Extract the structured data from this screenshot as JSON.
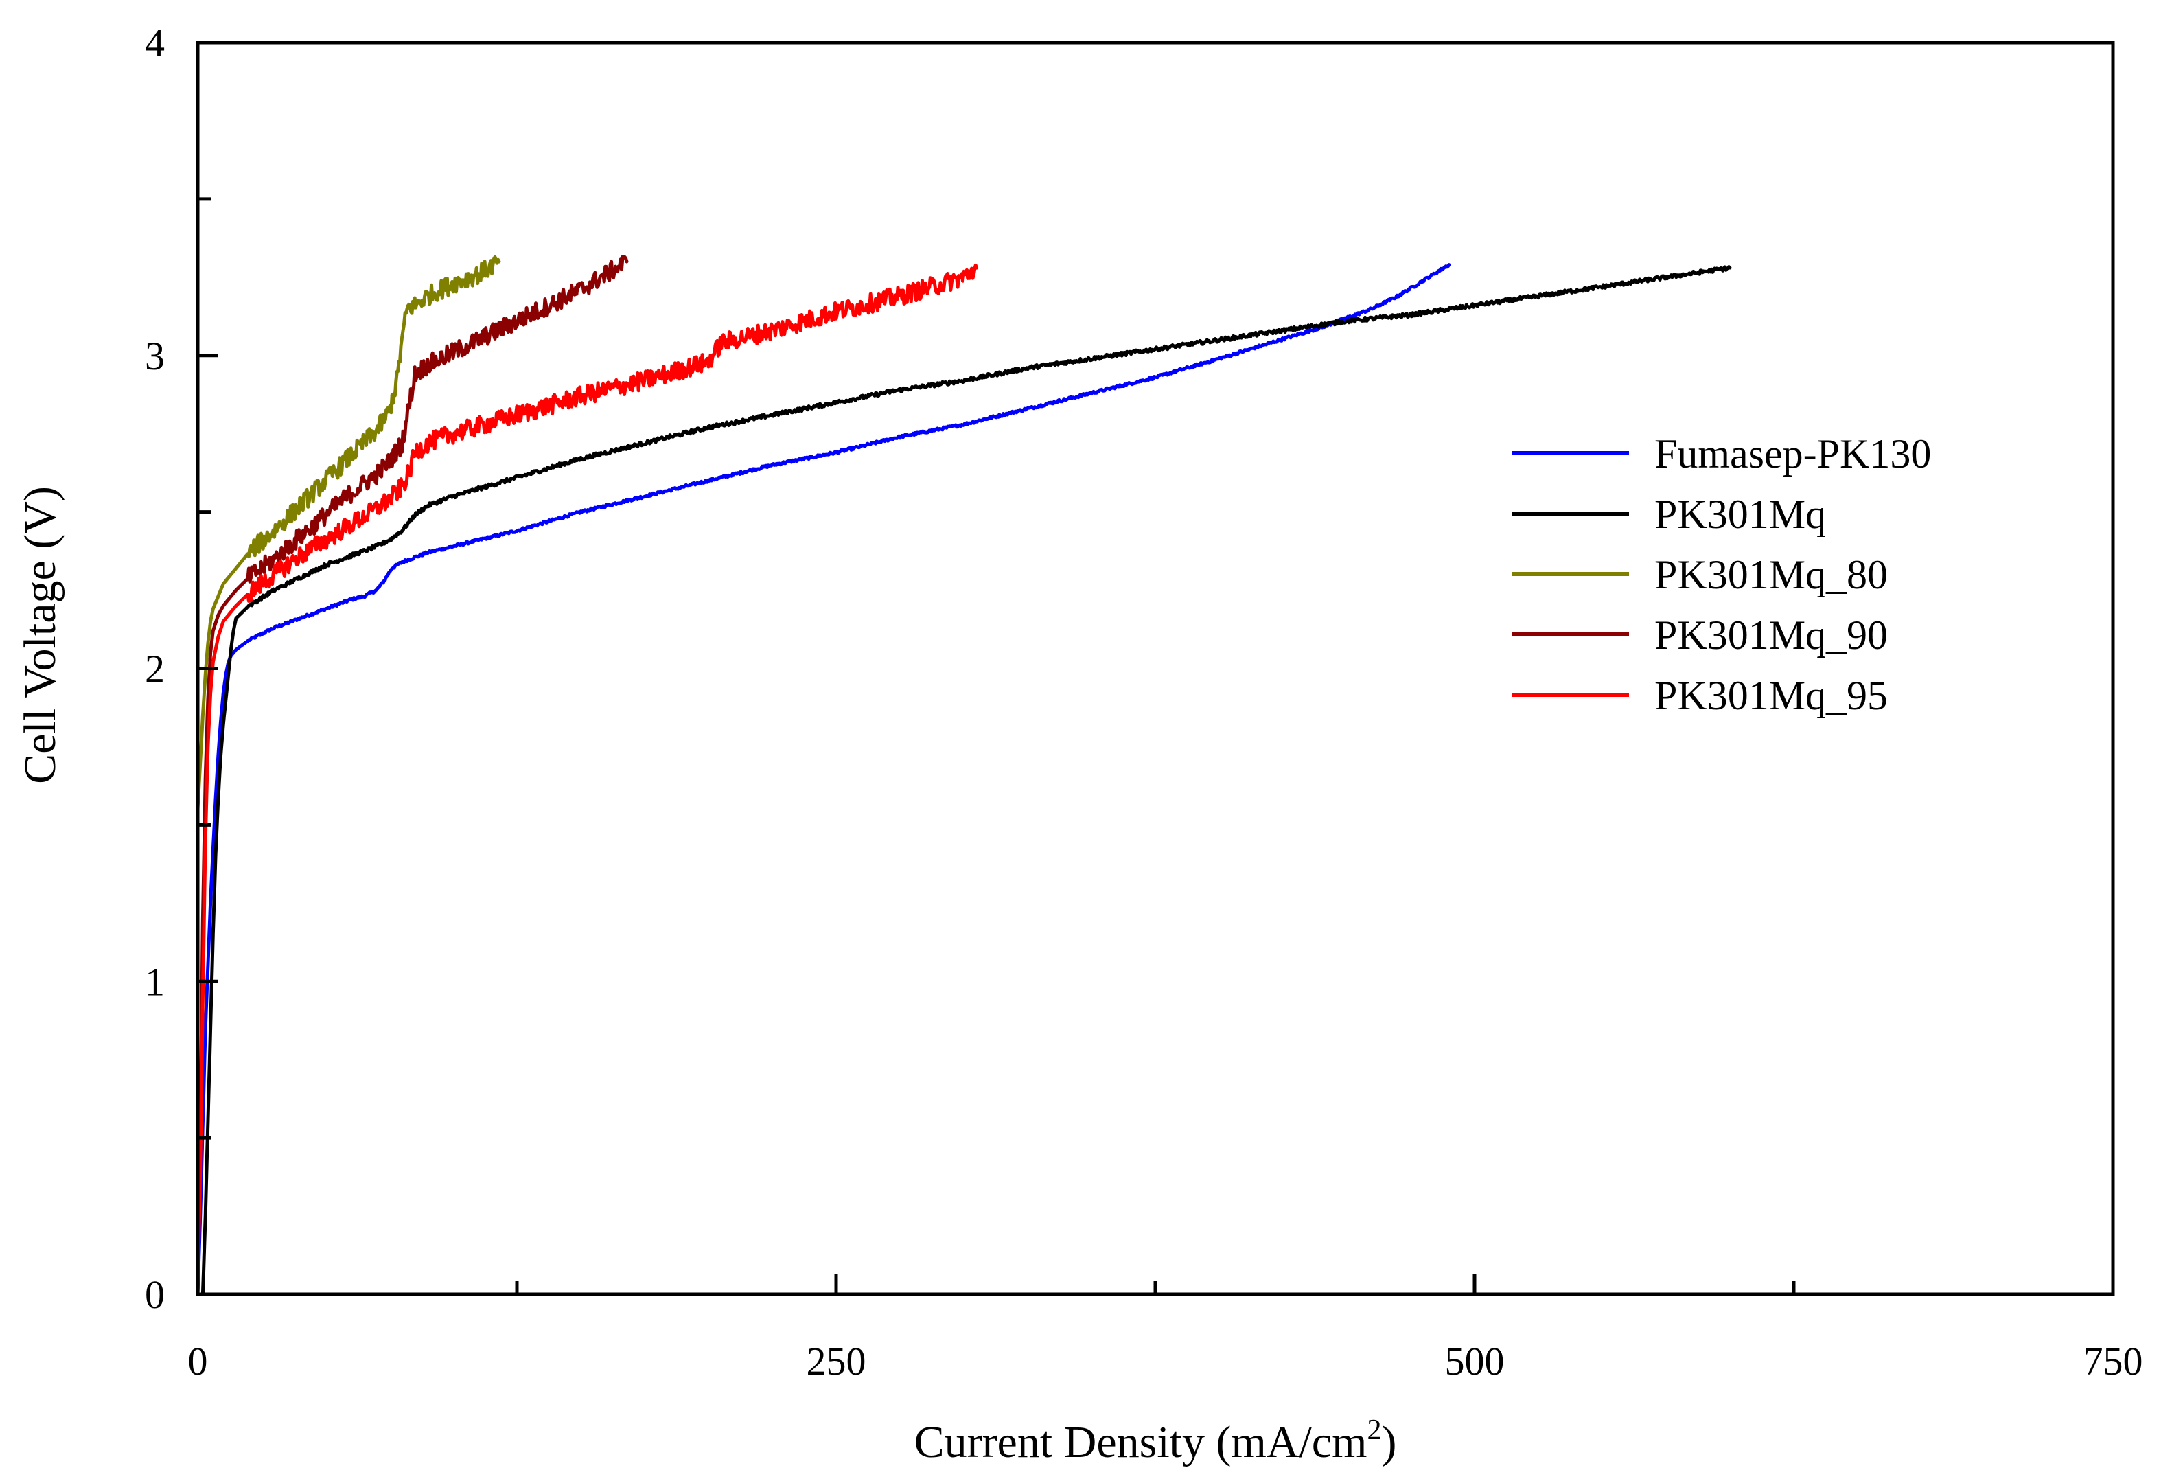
{
  "chart_data": {
    "type": "line",
    "title": "",
    "xlabel": "Current Density (mA/cm",
    "xlabel_superscript": "2",
    "xlabel_suffix": ")",
    "ylabel": "Cell Voltage (V)",
    "xlim": [
      0,
      750
    ],
    "ylim": [
      0,
      4
    ],
    "x_major_ticks": [
      0,
      250,
      500,
      750
    ],
    "x_minor_ticks": [
      125,
      375,
      625
    ],
    "y_major_ticks": [
      0,
      1,
      2,
      3,
      4
    ],
    "y_minor_ticks": [
      0.5,
      1.5,
      2.5,
      3.5
    ],
    "x_tick_labels": [
      "0",
      "250",
      "500",
      "750"
    ],
    "y_tick_labels": [
      "0",
      "1",
      "2",
      "3",
      "4"
    ],
    "grid": false,
    "legend_position": "center-right",
    "series": [
      {
        "name": "Fumasep-PK130",
        "color": "#0000ff",
        "noise": 0.004,
        "x": [
          0,
          1,
          2,
          3,
          4,
          5,
          6,
          7,
          8,
          9,
          10,
          11,
          12,
          13,
          15,
          20,
          30,
          40,
          50,
          60,
          65,
          70,
          73,
          76,
          80,
          90,
          100,
          125,
          150,
          175,
          200,
          225,
          250,
          275,
          300,
          325,
          350,
          375,
          400,
          420,
          440,
          450,
          460,
          470,
          480,
          490
        ],
        "y": [
          0.0,
          0.25,
          0.55,
          0.85,
          1.05,
          1.25,
          1.42,
          1.58,
          1.72,
          1.83,
          1.92,
          1.98,
          2.02,
          2.04,
          2.06,
          2.09,
          2.13,
          2.16,
          2.19,
          2.22,
          2.23,
          2.25,
          2.28,
          2.32,
          2.34,
          2.37,
          2.39,
          2.44,
          2.5,
          2.55,
          2.6,
          2.65,
          2.69,
          2.74,
          2.78,
          2.83,
          2.88,
          2.93,
          2.99,
          3.04,
          3.09,
          3.12,
          3.15,
          3.19,
          3.24,
          3.29
        ]
      },
      {
        "name": "PK301Mq",
        "color": "#000000",
        "noise": 0.006,
        "x": [
          2,
          3,
          4,
          5,
          6,
          7,
          8,
          9,
          10,
          11,
          12,
          13,
          14,
          15,
          20,
          30,
          40,
          50,
          60,
          70,
          75,
          80,
          85,
          90,
          100,
          125,
          150,
          175,
          200,
          225,
          250,
          275,
          300,
          325,
          350,
          375,
          400,
          425,
          450,
          475,
          500,
          525,
          550,
          575,
          600
        ],
        "y": [
          0.0,
          0.25,
          0.55,
          0.85,
          1.15,
          1.4,
          1.58,
          1.72,
          1.82,
          1.9,
          1.98,
          2.06,
          2.12,
          2.16,
          2.2,
          2.25,
          2.29,
          2.33,
          2.36,
          2.39,
          2.41,
          2.44,
          2.49,
          2.52,
          2.55,
          2.61,
          2.67,
          2.72,
          2.77,
          2.81,
          2.85,
          2.89,
          2.92,
          2.96,
          2.99,
          3.02,
          3.05,
          3.08,
          3.11,
          3.13,
          3.16,
          3.19,
          3.22,
          3.25,
          3.28
        ]
      },
      {
        "name": "PK301Mq_80",
        "color": "#808000",
        "noise": 0.03,
        "x": [
          0,
          1,
          2,
          3,
          4,
          5,
          6,
          8,
          10,
          15,
          20,
          30,
          40,
          50,
          60,
          70,
          75,
          78,
          80,
          82,
          85,
          90,
          95,
          100,
          110,
          118
        ],
        "y": [
          1.55,
          1.7,
          1.85,
          1.98,
          2.08,
          2.15,
          2.19,
          2.23,
          2.27,
          2.32,
          2.37,
          2.44,
          2.52,
          2.6,
          2.68,
          2.76,
          2.82,
          2.92,
          3.05,
          3.15,
          3.16,
          3.19,
          3.21,
          3.23,
          3.26,
          3.3
        ]
      },
      {
        "name": "PK301Mq_90",
        "color": "#8b0000",
        "noise": 0.03,
        "x": [
          0,
          1,
          2,
          3,
          4,
          5,
          6,
          8,
          10,
          15,
          20,
          30,
          40,
          50,
          60,
          70,
          75,
          80,
          83,
          85,
          90,
          100,
          110,
          120,
          130,
          140,
          150,
          160,
          168
        ],
        "y": [
          0.0,
          0.5,
          1.2,
          1.65,
          1.9,
          2.05,
          2.12,
          2.17,
          2.2,
          2.25,
          2.29,
          2.35,
          2.42,
          2.49,
          2.56,
          2.62,
          2.66,
          2.72,
          2.85,
          2.94,
          2.97,
          3.01,
          3.05,
          3.09,
          3.13,
          3.17,
          3.21,
          3.26,
          3.3
        ]
      },
      {
        "name": "PK301Mq_95",
        "color": "#ff0000",
        "noise": 0.03,
        "x": [
          0,
          1,
          2,
          3,
          4,
          5,
          6,
          8,
          10,
          15,
          20,
          30,
          40,
          50,
          60,
          70,
          75,
          80,
          83,
          85,
          90,
          100,
          125,
          150,
          175,
          200,
          205,
          225,
          250,
          275,
          300,
          305
        ],
        "y": [
          0.0,
          0.4,
          0.95,
          1.45,
          1.75,
          1.92,
          2.02,
          2.1,
          2.15,
          2.2,
          2.24,
          2.3,
          2.36,
          2.41,
          2.46,
          2.51,
          2.54,
          2.58,
          2.63,
          2.69,
          2.72,
          2.75,
          2.81,
          2.87,
          2.92,
          2.98,
          3.04,
          3.08,
          3.14,
          3.19,
          3.25,
          3.28
        ]
      }
    ]
  }
}
